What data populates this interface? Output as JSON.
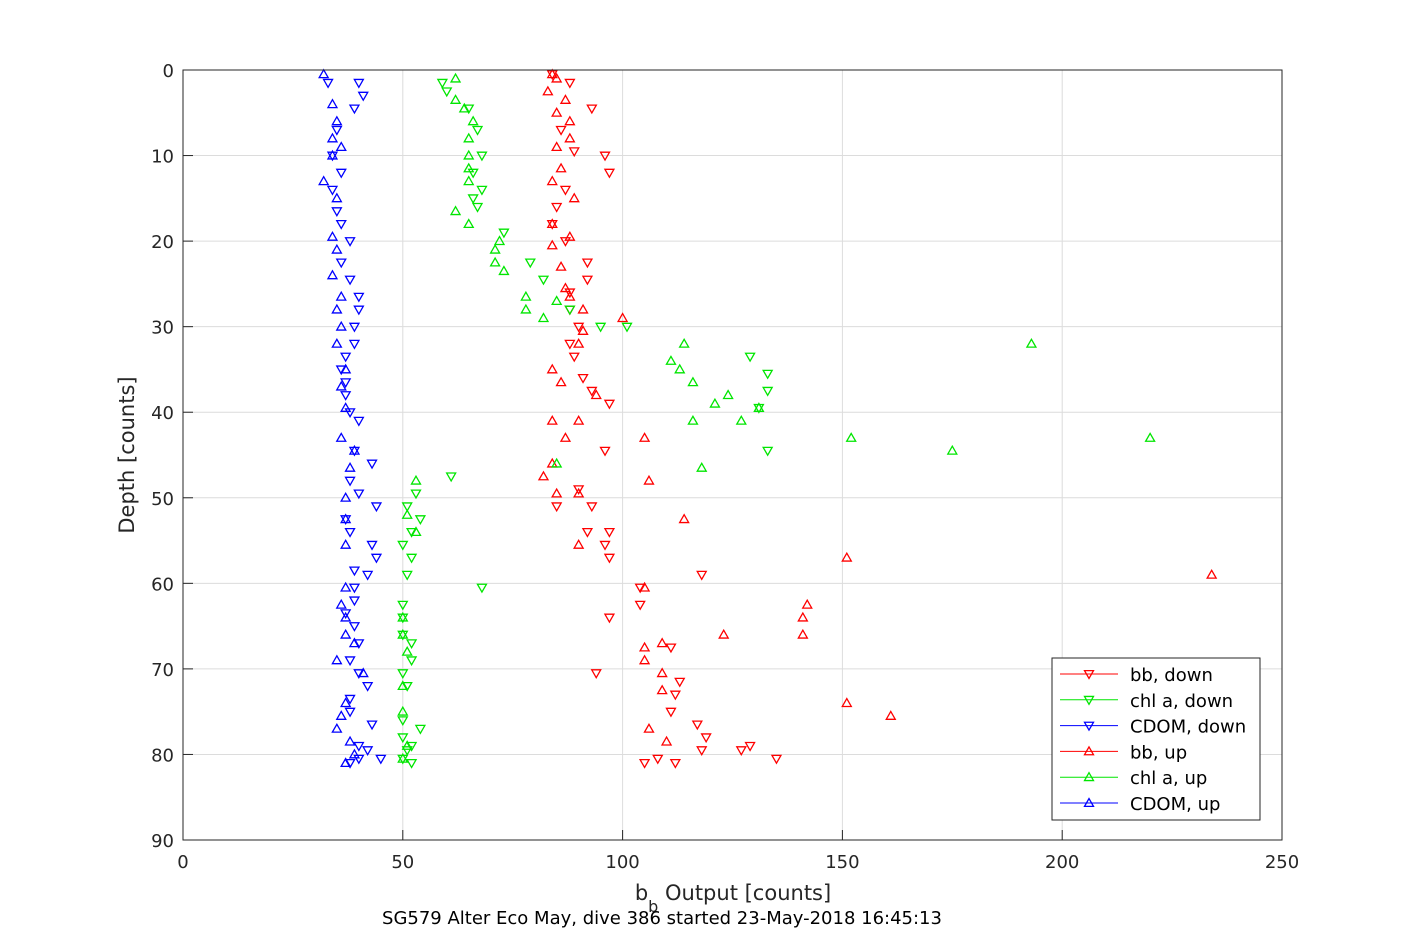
{
  "chart_data": {
    "type": "scatter",
    "title": "",
    "xlabel": {
      "main": "b",
      "sub": "b",
      "rest": " Output [counts]"
    },
    "ylabel": "Depth [counts]",
    "caption": "SG579 Alter Eco May, dive 386 started 23-May-2018 16:45:13",
    "xlim": [
      0,
      250
    ],
    "ylim": [
      0,
      90
    ],
    "y_reversed": true,
    "xticks": [
      0,
      50,
      100,
      150,
      200,
      250
    ],
    "yticks": [
      0,
      10,
      20,
      30,
      40,
      50,
      60,
      70,
      80,
      90
    ],
    "grid": true,
    "legend_position": "bottom-right",
    "series": [
      {
        "name": "bb, down",
        "color": "#ff0000",
        "marker": "triangle-down",
        "points": [
          [
            84,
            0.5
          ],
          [
            88,
            1.5
          ],
          [
            93,
            4.5
          ],
          [
            86,
            7
          ],
          [
            89,
            9.5
          ],
          [
            96,
            10
          ],
          [
            97,
            12
          ],
          [
            87,
            14
          ],
          [
            85,
            16
          ],
          [
            84,
            18
          ],
          [
            87,
            20
          ],
          [
            92,
            22.5
          ],
          [
            92,
            24.5
          ],
          [
            88,
            26
          ],
          [
            88,
            28
          ],
          [
            90,
            30
          ],
          [
            88,
            32
          ],
          [
            89,
            33.5
          ],
          [
            91,
            36
          ],
          [
            93,
            37.5
          ],
          [
            97,
            39
          ],
          [
            96,
            44.5
          ],
          [
            90,
            49
          ],
          [
            93,
            51
          ],
          [
            85,
            51
          ],
          [
            92,
            54
          ],
          [
            97,
            54
          ],
          [
            96,
            55.5
          ],
          [
            97,
            57
          ],
          [
            118,
            59
          ],
          [
            104,
            60.5
          ],
          [
            104,
            62.5
          ],
          [
            97,
            64
          ],
          [
            94,
            70.5
          ],
          [
            111,
            67.5
          ],
          [
            113,
            71.5
          ],
          [
            112,
            73
          ],
          [
            111,
            75
          ],
          [
            117,
            76.5
          ],
          [
            119,
            78
          ],
          [
            118,
            79.5
          ],
          [
            129,
            79
          ],
          [
            127,
            79.5
          ],
          [
            135,
            80.5
          ],
          [
            112,
            81
          ],
          [
            105,
            81
          ],
          [
            108,
            80.5
          ]
        ]
      },
      {
        "name": "chl a, down",
        "color": "#00e600",
        "marker": "triangle-down",
        "points": [
          [
            59,
            1.5
          ],
          [
            60,
            2.5
          ],
          [
            65,
            4.5
          ],
          [
            67,
            7
          ],
          [
            68,
            10
          ],
          [
            66,
            12
          ],
          [
            68,
            14
          ],
          [
            66,
            15
          ],
          [
            67,
            16
          ],
          [
            73,
            19
          ],
          [
            79,
            22.5
          ],
          [
            82,
            24.5
          ],
          [
            88,
            28
          ],
          [
            95,
            30
          ],
          [
            101,
            30
          ],
          [
            129,
            33.5
          ],
          [
            133,
            35.5
          ],
          [
            133,
            37.5
          ],
          [
            131,
            39.5
          ],
          [
            133,
            44.5
          ],
          [
            61,
            47.5
          ],
          [
            53,
            49.5
          ],
          [
            51,
            51
          ],
          [
            54,
            52.5
          ],
          [
            52,
            54
          ],
          [
            50,
            55.5
          ],
          [
            52,
            57
          ],
          [
            51,
            59
          ],
          [
            68,
            60.5
          ],
          [
            50,
            62.5
          ],
          [
            50,
            64
          ],
          [
            50,
            66
          ],
          [
            52,
            67
          ],
          [
            50,
            70.5
          ],
          [
            52,
            69
          ],
          [
            51,
            72
          ],
          [
            50,
            76
          ],
          [
            54,
            77
          ],
          [
            50,
            78
          ],
          [
            52,
            79
          ],
          [
            51,
            79.5
          ],
          [
            50,
            80.5
          ],
          [
            52,
            81
          ]
        ]
      },
      {
        "name": "CDOM, down",
        "color": "#0000ff",
        "marker": "triangle-down",
        "points": [
          [
            33,
            1.5
          ],
          [
            40,
            1.5
          ],
          [
            41,
            3
          ],
          [
            39,
            4.5
          ],
          [
            35,
            7
          ],
          [
            34,
            10
          ],
          [
            36,
            12
          ],
          [
            34,
            14
          ],
          [
            35,
            16.5
          ],
          [
            36,
            18
          ],
          [
            38,
            20
          ],
          [
            36,
            22.5
          ],
          [
            38,
            24.5
          ],
          [
            40,
            26.5
          ],
          [
            40,
            28
          ],
          [
            39,
            30
          ],
          [
            39,
            32
          ],
          [
            37,
            33.5
          ],
          [
            36,
            35
          ],
          [
            37,
            36.5
          ],
          [
            37,
            38
          ],
          [
            38,
            40
          ],
          [
            40,
            41
          ],
          [
            39,
            44.5
          ],
          [
            43,
            46
          ],
          [
            38,
            48
          ],
          [
            40,
            49.5
          ],
          [
            44,
            51
          ],
          [
            37,
            52.5
          ],
          [
            38,
            54
          ],
          [
            43,
            55.5
          ],
          [
            44,
            57
          ],
          [
            39,
            58.5
          ],
          [
            42,
            59
          ],
          [
            39,
            60.5
          ],
          [
            39,
            62
          ],
          [
            37,
            63.5
          ],
          [
            39,
            65
          ],
          [
            40,
            67
          ],
          [
            38,
            69
          ],
          [
            40,
            70.5
          ],
          [
            42,
            72
          ],
          [
            38,
            73.5
          ],
          [
            38,
            75
          ],
          [
            43,
            76.5
          ],
          [
            40,
            79
          ],
          [
            42,
            79.5
          ],
          [
            45,
            80.5
          ],
          [
            40,
            80.5
          ],
          [
            38,
            81
          ]
        ]
      },
      {
        "name": "bb, up",
        "color": "#ff0000",
        "marker": "triangle-up",
        "points": [
          [
            84,
            0.5
          ],
          [
            85,
            1
          ],
          [
            83,
            2.5
          ],
          [
            87,
            3.5
          ],
          [
            85,
            5
          ],
          [
            88,
            6
          ],
          [
            88,
            8
          ],
          [
            85,
            9
          ],
          [
            86,
            11.5
          ],
          [
            84,
            13
          ],
          [
            89,
            15
          ],
          [
            84,
            18
          ],
          [
            88,
            19.5
          ],
          [
            84,
            20.5
          ],
          [
            86,
            23
          ],
          [
            87,
            25.5
          ],
          [
            88,
            26.5
          ],
          [
            91,
            28
          ],
          [
            91,
            30.5
          ],
          [
            100,
            29
          ],
          [
            90,
            32
          ],
          [
            84,
            35
          ],
          [
            86,
            36.5
          ],
          [
            94,
            38
          ],
          [
            84,
            41
          ],
          [
            90,
            41
          ],
          [
            87,
            43
          ],
          [
            105,
            43
          ],
          [
            84,
            46
          ],
          [
            82,
            47.5
          ],
          [
            85,
            49.5
          ],
          [
            90,
            49.5
          ],
          [
            106,
            48
          ],
          [
            114,
            52.5
          ],
          [
            90,
            55.5
          ],
          [
            151,
            57
          ],
          [
            234,
            59
          ],
          [
            105,
            60.5
          ],
          [
            142,
            62.5
          ],
          [
            141,
            64
          ],
          [
            141,
            66
          ],
          [
            123,
            66
          ],
          [
            105,
            67.5
          ],
          [
            109,
            67
          ],
          [
            105,
            69
          ],
          [
            109,
            70.5
          ],
          [
            109,
            72.5
          ],
          [
            151,
            74
          ],
          [
            161,
            75.5
          ],
          [
            106,
            77
          ],
          [
            110,
            78.5
          ]
        ]
      },
      {
        "name": "chl a, up",
        "color": "#00e600",
        "marker": "triangle-up",
        "points": [
          [
            62,
            1
          ],
          [
            62,
            3.5
          ],
          [
            64,
            4.5
          ],
          [
            66,
            6
          ],
          [
            65,
            8
          ],
          [
            65,
            10
          ],
          [
            65,
            11.5
          ],
          [
            65,
            13
          ],
          [
            62,
            16.5
          ],
          [
            65,
            18
          ],
          [
            72,
            20
          ],
          [
            71,
            21
          ],
          [
            71,
            22.5
          ],
          [
            73,
            23.5
          ],
          [
            78,
            26.5
          ],
          [
            78,
            28
          ],
          [
            82,
            29
          ],
          [
            85,
            27
          ],
          [
            193,
            32
          ],
          [
            114,
            32
          ],
          [
            111,
            34
          ],
          [
            113,
            35
          ],
          [
            116,
            36.5
          ],
          [
            124,
            38
          ],
          [
            121,
            39
          ],
          [
            131,
            39.5
          ],
          [
            116,
            41
          ],
          [
            127,
            41
          ],
          [
            152,
            43
          ],
          [
            220,
            43
          ],
          [
            175,
            44.5
          ],
          [
            85,
            46
          ],
          [
            118,
            46.5
          ],
          [
            53,
            48
          ],
          [
            51,
            52
          ],
          [
            53,
            54
          ],
          [
            50,
            64
          ],
          [
            50,
            66
          ],
          [
            51,
            68
          ],
          [
            50,
            72
          ],
          [
            50,
            75
          ],
          [
            51,
            79
          ],
          [
            50,
            80.5
          ]
        ]
      },
      {
        "name": "CDOM, up",
        "color": "#0000ff",
        "marker": "triangle-up",
        "points": [
          [
            32,
            0.5
          ],
          [
            34,
            4
          ],
          [
            35,
            6
          ],
          [
            34,
            8
          ],
          [
            36,
            9
          ],
          [
            34,
            10
          ],
          [
            32,
            13
          ],
          [
            35,
            15
          ],
          [
            34,
            19.5
          ],
          [
            35,
            21
          ],
          [
            34,
            24
          ],
          [
            36,
            26.5
          ],
          [
            35,
            28
          ],
          [
            36,
            30
          ],
          [
            35,
            32
          ],
          [
            37,
            35
          ],
          [
            36,
            37
          ],
          [
            37,
            39.5
          ],
          [
            36,
            43
          ],
          [
            39,
            44.5
          ],
          [
            38,
            46.5
          ],
          [
            37,
            50
          ],
          [
            37,
            52.5
          ],
          [
            37,
            55.5
          ],
          [
            37,
            60.5
          ],
          [
            36,
            62.5
          ],
          [
            37,
            64
          ],
          [
            37,
            66
          ],
          [
            39,
            67
          ],
          [
            35,
            69
          ],
          [
            41,
            70.5
          ],
          [
            37,
            74
          ],
          [
            36,
            75.5
          ],
          [
            35,
            77
          ],
          [
            38,
            78.5
          ],
          [
            39,
            80
          ],
          [
            37,
            81
          ]
        ]
      }
    ]
  }
}
